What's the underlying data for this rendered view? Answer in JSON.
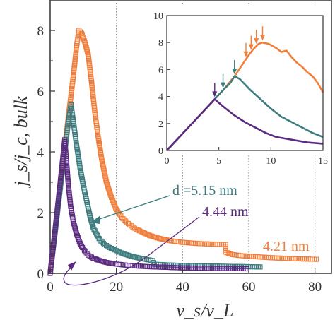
{
  "chart_data": [
    {
      "type": "scatter",
      "title": "",
      "xlabel": "v_s/v_L",
      "ylabel": "j_s/j_c, bulk",
      "xlim": [
        0,
        85
      ],
      "ylim": [
        0,
        9
      ],
      "xticks": [
        0,
        20,
        40,
        60,
        80
      ],
      "yticks": [
        0,
        2,
        4,
        6,
        8
      ],
      "grid": "vertical dotted lines at x = 20, 40, 60, 80",
      "legend": "none (direct annotations)",
      "series": [
        {
          "name": "4.21 nm",
          "color": "#F07F3C",
          "marker": "open square",
          "x": [
            0,
            2,
            4,
            6,
            7,
            8,
            8.7,
            9.5,
            10.5,
            11.5,
            12.5,
            13.5,
            14.5,
            15.5,
            17,
            18.5,
            20,
            22,
            24,
            26,
            28,
            30,
            33,
            36,
            40,
            45,
            50,
            53,
            53,
            55,
            58,
            62,
            66,
            70,
            74,
            78,
            81
          ],
          "y": [
            0,
            1.9,
            3.8,
            5.6,
            6.5,
            7.5,
            8.0,
            7.9,
            7.6,
            7.2,
            6.3,
            5.3,
            4.5,
            3.8,
            3.0,
            2.5,
            2.1,
            1.8,
            1.6,
            1.45,
            1.35,
            1.25,
            1.15,
            1.08,
            1.02,
            0.98,
            0.96,
            0.95,
            0.7,
            0.62,
            0.58,
            0.55,
            0.52,
            0.5,
            0.48,
            0.47,
            0.46
          ]
        },
        {
          "name": "5.15 nm",
          "label": "d =5.15 nm",
          "color": "#3E7C7F",
          "marker": "open square",
          "x": [
            0,
            1.5,
            3,
            4.5,
            5.5,
            6.3,
            7,
            8,
            9,
            10,
            11,
            12,
            13,
            14,
            15,
            16.5,
            18,
            20,
            22,
            25,
            28,
            31,
            31.5,
            35,
            40,
            45,
            50,
            55,
            60,
            64
          ],
          "y": [
            0,
            1.35,
            2.75,
            4.1,
            5.0,
            5.55,
            5.0,
            4.2,
            3.5,
            2.9,
            2.4,
            1.9,
            1.5,
            1.3,
            1.1,
            0.95,
            0.85,
            0.75,
            0.65,
            0.55,
            0.48,
            0.42,
            0.3,
            0.28,
            0.26,
            0.25,
            0.24,
            0.23,
            0.22,
            0.21
          ]
        },
        {
          "name": "4.44 nm",
          "color": "#5B2A80",
          "marker": "open square",
          "x": [
            0,
            1.5,
            3,
            4.4,
            5,
            5.5,
            6.2,
            7,
            8,
            9,
            10,
            11.5,
            13,
            15,
            17,
            19,
            22,
            25,
            30,
            35,
            40,
            50,
            60
          ],
          "y": [
            0,
            1.45,
            2.95,
            4.4,
            3.6,
            2.9,
            2.2,
            1.7,
            1.3,
            1.0,
            0.8,
            0.6,
            0.5,
            0.42,
            0.36,
            0.32,
            0.28,
            0.25,
            0.22,
            0.2,
            0.18,
            0.16,
            0.15
          ]
        }
      ],
      "annotations": [
        {
          "text": "d =5.15 nm",
          "color": "#3E7C7F"
        },
        {
          "text": "4.44 nm",
          "color": "#5B2A80"
        },
        {
          "text": "4.21 nm",
          "color": "#F07F3C"
        }
      ]
    },
    {
      "type": "line",
      "title": "",
      "xlabel": "",
      "ylabel": "",
      "xlim": [
        0,
        15
      ],
      "ylim": [
        0,
        10
      ],
      "xticks": [
        0,
        5,
        10,
        15
      ],
      "yticks": [
        0,
        2,
        4,
        6,
        8,
        10
      ],
      "grid": "none",
      "legend": "none",
      "series": [
        {
          "color": "#F07F3C",
          "x": [
            0,
            2,
            4,
            5.5,
            6.5,
            7.2,
            7.8,
            8.3,
            8.8,
            9.2,
            9.8,
            10.5,
            11,
            11.5,
            12,
            12.5,
            13,
            13.5,
            14,
            14.5,
            15
          ],
          "y": [
            0,
            1.65,
            3.3,
            4.55,
            5.5,
            6.3,
            7.0,
            7.5,
            7.9,
            8.0,
            7.9,
            7.6,
            7.3,
            7.4,
            6.9,
            6.5,
            6.2,
            5.8,
            5.5,
            5.0,
            4.3
          ],
          "arrows_x": [
            6.5,
            7.6,
            8.1,
            8.6,
            9.2
          ]
        },
        {
          "color": "#3E7C7F",
          "x": [
            0,
            2,
            4,
            5.5,
            6.1,
            6.5,
            7,
            8,
            9,
            10,
            11,
            12,
            13,
            14,
            15
          ],
          "y": [
            0,
            1.65,
            3.3,
            4.55,
            5.0,
            5.5,
            5.3,
            4.5,
            3.8,
            3.1,
            2.5,
            2.1,
            1.7,
            1.3,
            1.0
          ],
          "arrows_x": [
            5.4,
            6.5
          ]
        },
        {
          "color": "#5B2A80",
          "x": [
            0,
            2,
            4,
            4.6,
            5.5,
            6.5,
            7.5,
            8.5,
            9.5,
            10.5,
            12,
            13.5,
            15
          ],
          "y": [
            0,
            1.65,
            3.3,
            3.8,
            3.2,
            2.6,
            2.1,
            1.7,
            1.3,
            1.0,
            0.8,
            0.6,
            0.5
          ],
          "arrows_x": [
            4.6
          ]
        }
      ]
    }
  ]
}
